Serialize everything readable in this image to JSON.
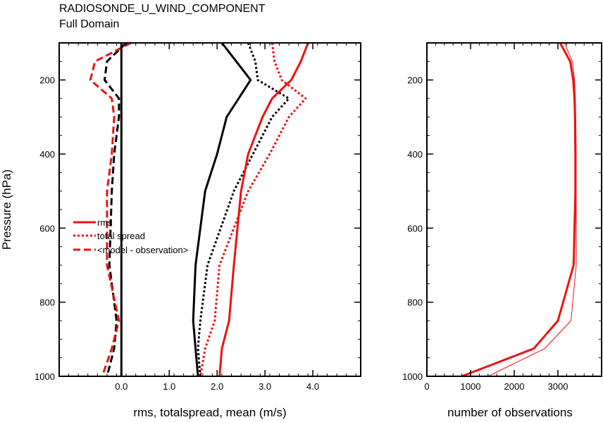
{
  "header": {
    "title": "RADIOSONDE_U_WIND_COMPONENT",
    "subtitle": "Full Domain"
  },
  "chart_data": [
    {
      "type": "line",
      "ylabel": "Pressure (hPa)",
      "xlabel": "rms, totalspread, mean (m/s)",
      "xlim": [
        -1.3,
        5.0
      ],
      "ylim": [
        1000,
        100
      ],
      "xticks": [
        0.0,
        1.0,
        2.0,
        3.0,
        4.0
      ],
      "xtick_labels": [
        "0.0",
        "1.0",
        "2.0",
        "3.0",
        "4.0"
      ],
      "yticks": [
        200,
        400,
        600,
        800,
        1000
      ],
      "ytick_labels": [
        "200",
        "400",
        "600",
        "800",
        "1000"
      ],
      "legend": {
        "placement": "center-left",
        "entries": [
          "rms",
          "total spread",
          "<model - observation>"
        ]
      },
      "zero_line": 0.0,
      "pressure_levels": [
        100,
        150,
        200,
        250,
        300,
        400,
        500,
        700,
        850,
        925,
        1000
      ],
      "series": [
        {
          "color": "#000000",
          "style": "solid",
          "values": [
            2.1,
            2.4,
            2.7,
            2.45,
            2.2,
            2.0,
            1.75,
            1.55,
            1.5,
            1.55,
            1.6
          ]
        },
        {
          "color": "#000000",
          "style": "dotted",
          "values": [
            2.65,
            2.8,
            2.85,
            3.5,
            3.15,
            2.75,
            2.35,
            1.8,
            1.65,
            1.6,
            1.65
          ]
        },
        {
          "color": "#000000",
          "style": "dashed",
          "values": [
            0.1,
            -0.3,
            -0.35,
            -0.05,
            -0.05,
            -0.15,
            -0.2,
            -0.25,
            -0.1,
            -0.15,
            -0.3
          ]
        },
        {
          "color": "#ee1111",
          "style": "solid",
          "values": [
            3.9,
            3.75,
            3.55,
            3.15,
            2.95,
            2.65,
            2.5,
            2.35,
            2.25,
            2.1,
            2.05
          ]
        },
        {
          "color": "#ee1111",
          "style": "dotted",
          "values": [
            3.15,
            3.2,
            3.35,
            3.85,
            3.5,
            3.1,
            2.65,
            2.05,
            1.95,
            1.75,
            1.65
          ]
        },
        {
          "color": "#ee1111",
          "style": "dashed",
          "values": [
            0.2,
            -0.55,
            -0.65,
            -0.2,
            -0.15,
            -0.2,
            -0.3,
            -0.3,
            -0.05,
            -0.2,
            -0.4
          ]
        }
      ]
    },
    {
      "type": "line",
      "xlabel": "number of observations",
      "xlim": [
        0,
        4000
      ],
      "ylim": [
        1000,
        100
      ],
      "xticks": [
        0,
        1000,
        2000,
        3000
      ],
      "xtick_labels": [
        "0",
        "1000",
        "2000",
        "3000"
      ],
      "yticks": [
        200,
        400,
        600,
        800,
        1000
      ],
      "ytick_labels": [
        "200",
        "400",
        "600",
        "800",
        "1000"
      ],
      "pressure_levels": [
        100,
        150,
        200,
        250,
        300,
        400,
        500,
        700,
        850,
        925,
        1000
      ],
      "series": [
        {
          "color": "#ee1111",
          "style": "thick",
          "values": [
            3050,
            3280,
            3350,
            3380,
            3390,
            3400,
            3400,
            3360,
            3000,
            2450,
            800
          ]
        },
        {
          "color": "#ee1111",
          "style": "thin",
          "values": [
            3150,
            3330,
            3380,
            3400,
            3410,
            3420,
            3420,
            3420,
            3300,
            2700,
            1400
          ]
        }
      ]
    }
  ]
}
